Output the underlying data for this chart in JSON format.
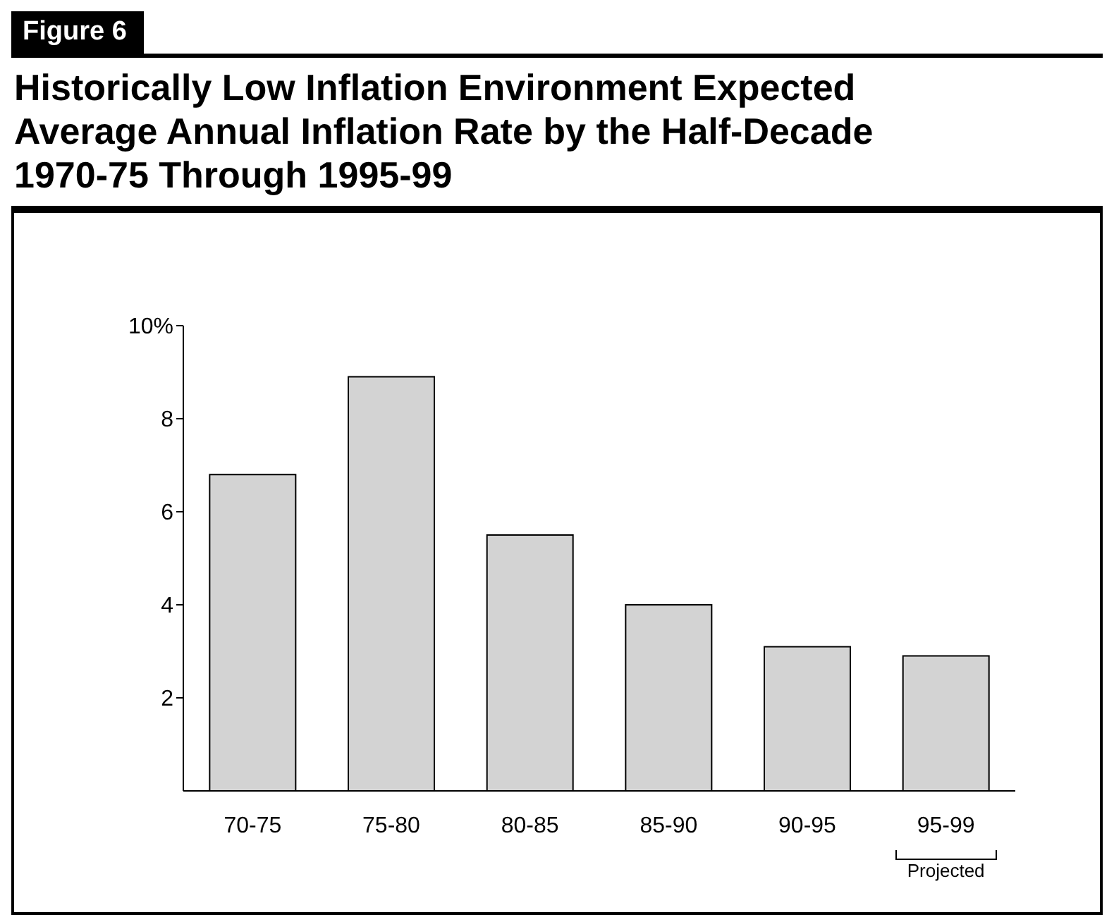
{
  "chart_data": {
    "type": "bar",
    "title": "Historically Low Inflation Environment Expected Average Annual Inflation Rate by the Half-Decade 1970-75 Through 1995-99",
    "annotations": [
      "Figure 6",
      "Projected"
    ],
    "categories": [
      "70-75",
      "75-80",
      "80-85",
      "85-90",
      "90-95",
      "95-99"
    ],
    "values": [
      6.8,
      8.9,
      5.5,
      4.0,
      3.1,
      2.9
    ],
    "color": "#d3d3d3",
    "ylim": [
      0,
      10
    ],
    "yticks": [
      2,
      4,
      6,
      8,
      {
        "value": 10,
        "label": "10%"
      }
    ],
    "grid": false,
    "legend": false
  }
}
